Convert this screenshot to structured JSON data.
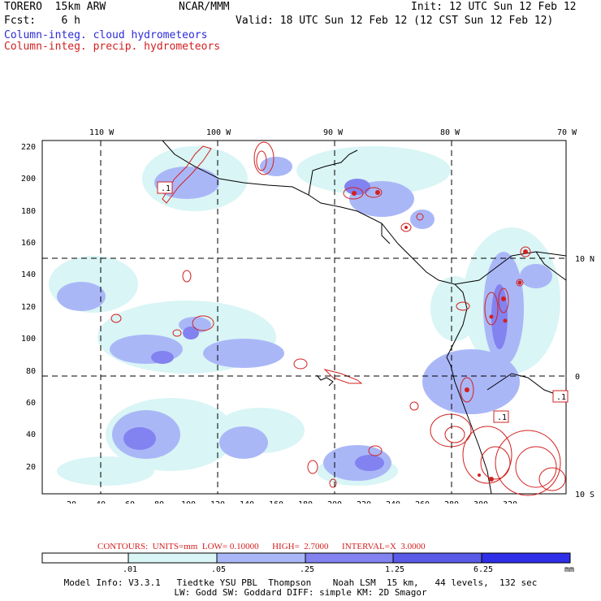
{
  "header": {
    "model": "TORERO  15km ARW",
    "center": "NCAR/MMM",
    "init": "Init: 12 UTC Sun 12 Feb 12",
    "fcst": "Fcst:    6 h",
    "valid": "Valid: 18 UTC Sun 12 Feb 12 (12 CST Sun 12 Feb 12)",
    "field1": "Column-integ. cloud hydrometeors",
    "field2": "Column-integ. precip. hydrometeors"
  },
  "map": {
    "lon_labels": [
      "110 W",
      "100 W",
      "90 W",
      "80 W",
      "70 W"
    ],
    "lat_labels": [
      "10 N",
      "0",
      "10 S"
    ],
    "y_ticks": [
      "220",
      "200",
      "180",
      "160",
      "140",
      "120",
      "100",
      "80",
      "60",
      "40",
      "20"
    ],
    "x_ticks": [
      "20",
      "40",
      "60",
      "80",
      "100",
      "120",
      "140",
      "160",
      "180",
      "200",
      "220",
      "240",
      "260",
      "280",
      "300",
      "320"
    ],
    "contour_labels": [
      ".1",
      ".1",
      ".1"
    ]
  },
  "contour_info": {
    "text": "CONTOURS:  UNITS=mm  LOW= 0.10000      HIGH=  2.7000      INTERVAL=X  3.0000"
  },
  "colorbar": {
    "ticks": [
      ".01",
      ".05",
      ".25",
      "1.25",
      "6.25"
    ],
    "unit": "mm",
    "colors": [
      "#ffffff",
      "#d9f5f5",
      "#aab7f7",
      "#8282f0",
      "#5a5ae8",
      "#2e2ee8"
    ]
  },
  "footer": {
    "line1": "Model Info: V3.3.1   Tiedtke YSU PBL  Thompson    Noah LSM  15 km,   44 levels,  132 sec",
    "line2": "LW: Godd SW: Goddard DIFF: simple KM: 2D Smagor"
  }
}
